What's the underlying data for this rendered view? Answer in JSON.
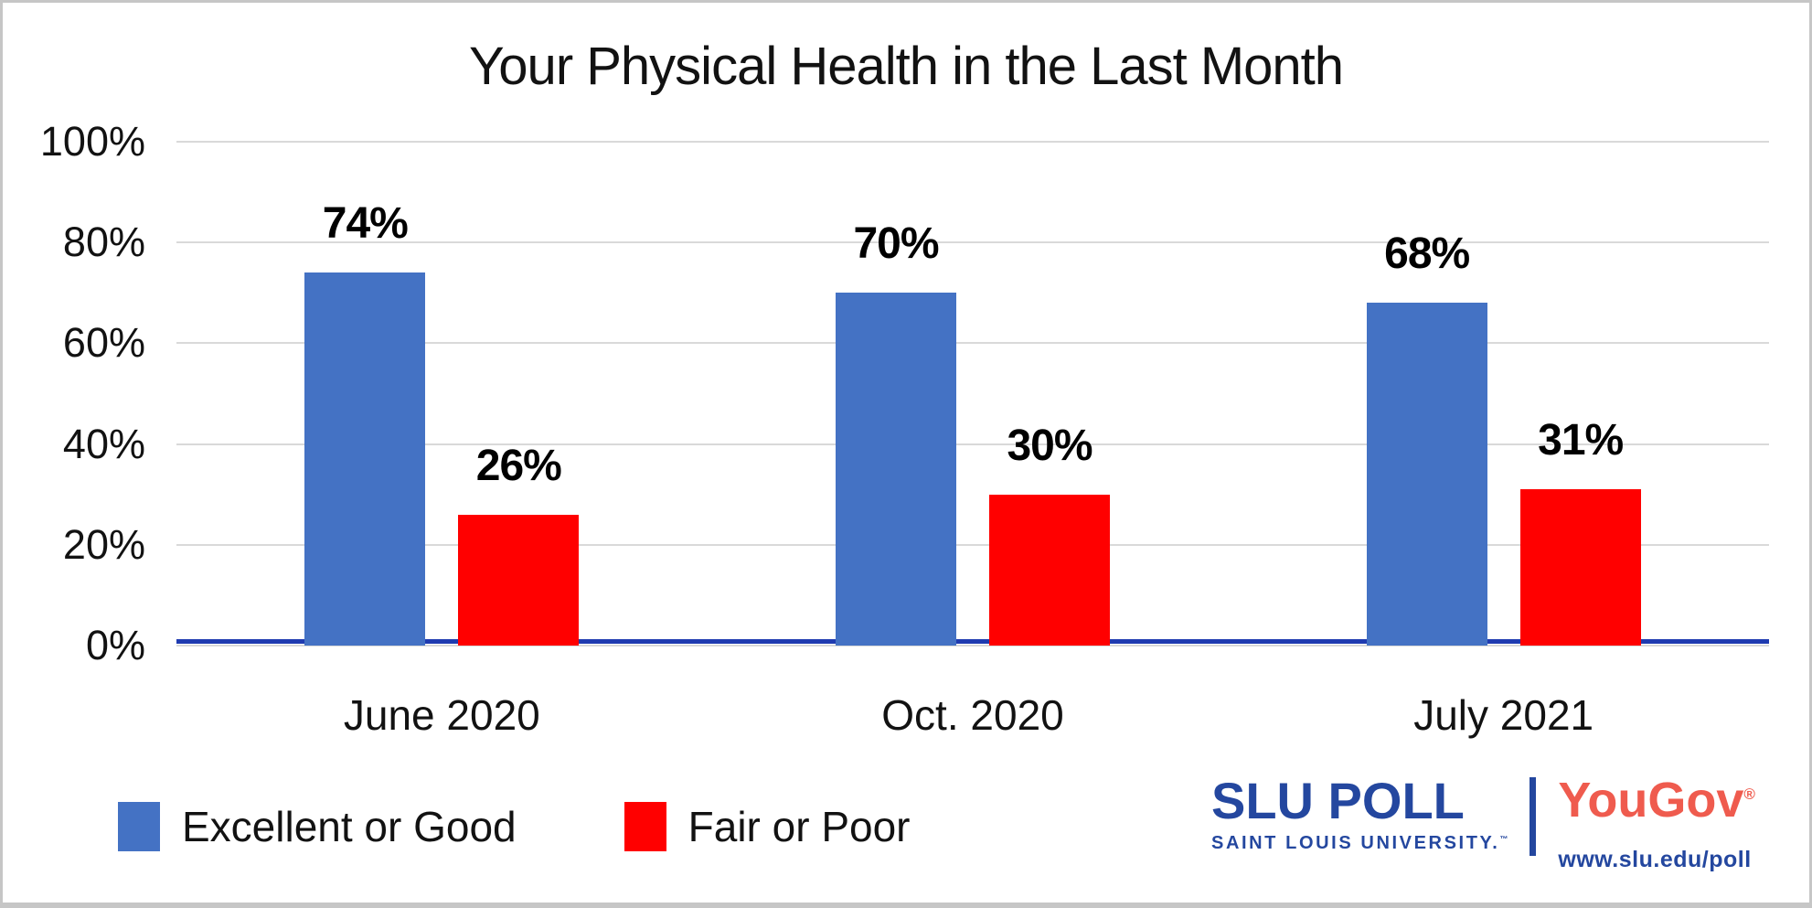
{
  "chart_data": {
    "type": "bar",
    "title": "Your Physical Health in the Last Month",
    "categories": [
      "June 2020",
      "Oct. 2020",
      "July 2021"
    ],
    "series": [
      {
        "name": "Excellent or Good",
        "color": "#4472C4",
        "values": [
          74,
          70,
          68
        ],
        "labels": [
          "74%",
          "70%",
          "68%"
        ]
      },
      {
        "name": "Fair or Poor",
        "color": "#FF0000",
        "values": [
          26,
          30,
          31
        ],
        "labels": [
          "26%",
          "30%",
          "31%"
        ]
      }
    ],
    "y_axis": {
      "min": 0,
      "max": 100,
      "tick_values": [
        100,
        80,
        60,
        40,
        20,
        0
      ],
      "ticks": [
        "100%",
        "80%",
        "60%",
        "40%",
        "20%",
        "0%"
      ],
      "gridlines": true,
      "gridline_color": "#D9D9D9",
      "axis_line_color": "#1F3BB0"
    },
    "legend_position": "bottom-left",
    "grid": true
  },
  "branding": {
    "slu_title": "SLU POLL",
    "slu_subtitle": "SAINT LOUIS UNIVERSITY.",
    "slu_trademark": "™",
    "slu_color": "#24479F",
    "yougov_name": "YouGov",
    "yougov_registered": "®",
    "yougov_color": "#EF5B4E",
    "url": "www.slu.edu/poll"
  }
}
